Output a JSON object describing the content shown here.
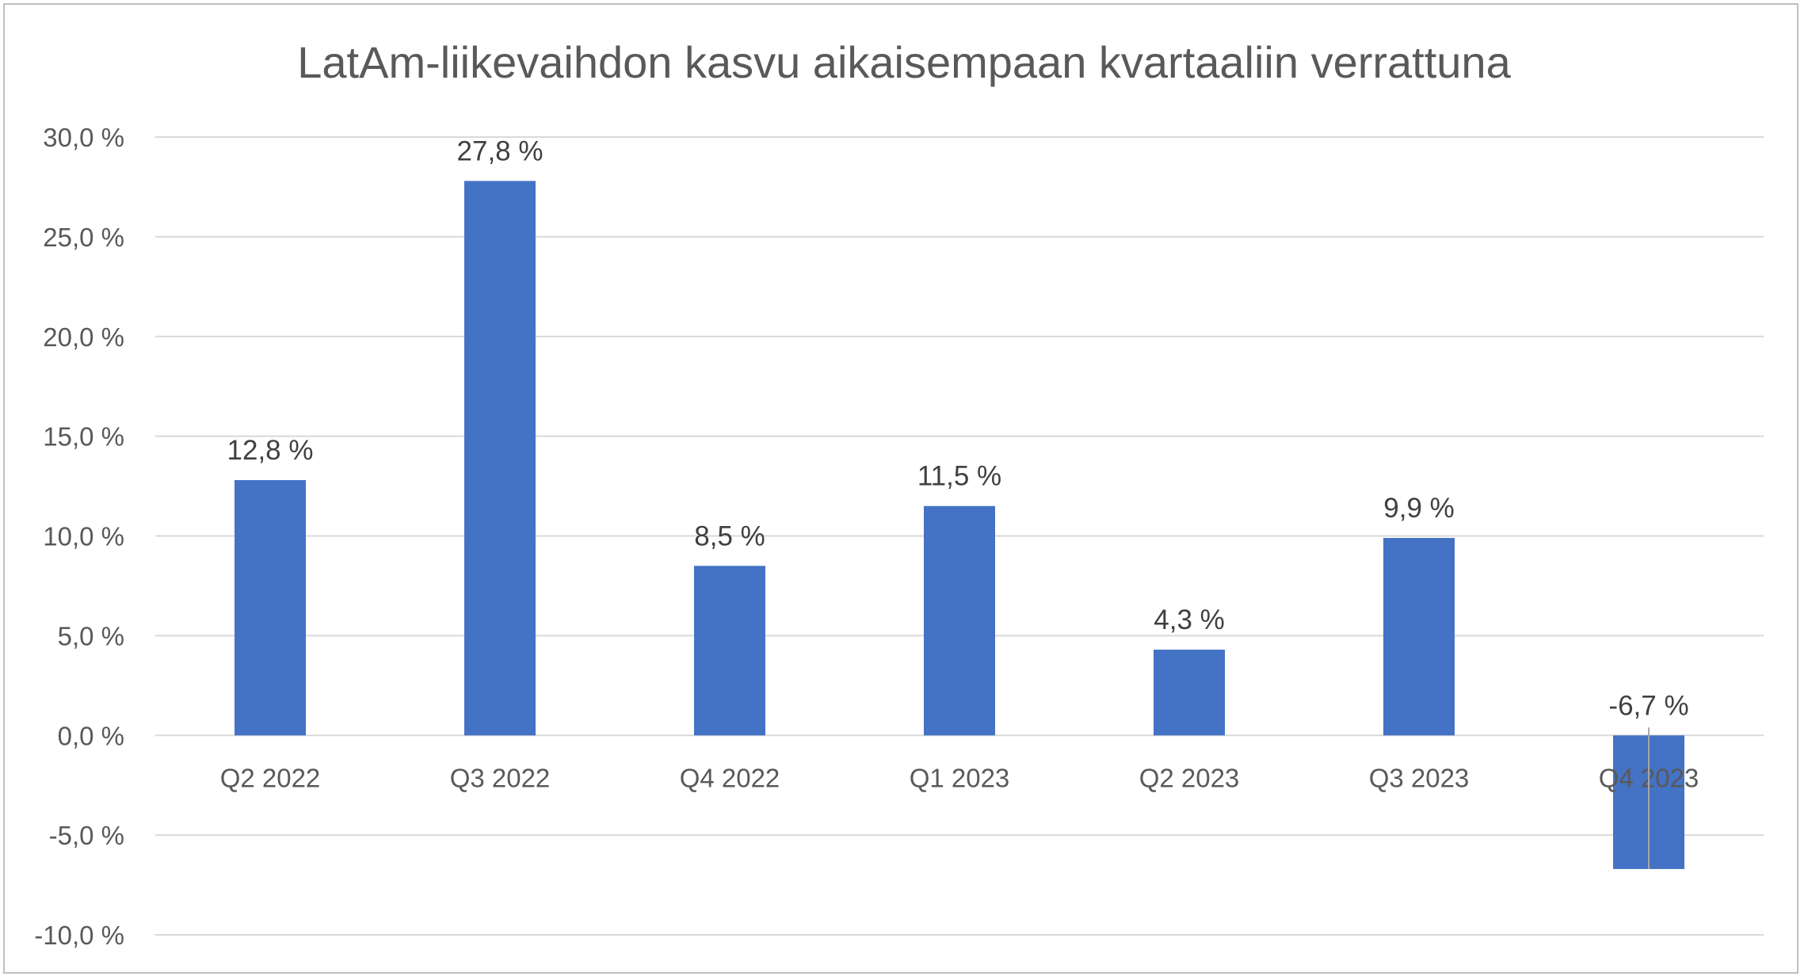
{
  "chart_data": {
    "type": "bar",
    "title": "LatAm-liikevaihdon kasvu aikaisempaan kvartaaliin verrattuna",
    "xlabel": "",
    "ylabel": "",
    "categories": [
      "Q2 2022",
      "Q3 2022",
      "Q4 2022",
      "Q1 2023",
      "Q2 2023",
      "Q3 2023",
      "Q4 2023"
    ],
    "values": [
      12.8,
      27.8,
      8.5,
      11.5,
      4.3,
      9.9,
      -6.7
    ],
    "data_labels": [
      "12,8 %",
      "27,8 %",
      "8,5 %",
      "11,5 %",
      "4,3 %",
      "9,9 %",
      "-6,7 %"
    ],
    "ylim": [
      -10,
      30
    ],
    "yticks": [
      30,
      25,
      20,
      15,
      10,
      5,
      0,
      -5,
      -10
    ],
    "ytick_labels": [
      "30,0 %",
      "25,0 %",
      "20,0 %",
      "15,0 %",
      "10,0 %",
      "5,0 %",
      "0,0 %",
      "-5,0 %",
      "-10,0 %"
    ],
    "grid": true,
    "legend": "none",
    "bar_color": "#4472C4"
  }
}
